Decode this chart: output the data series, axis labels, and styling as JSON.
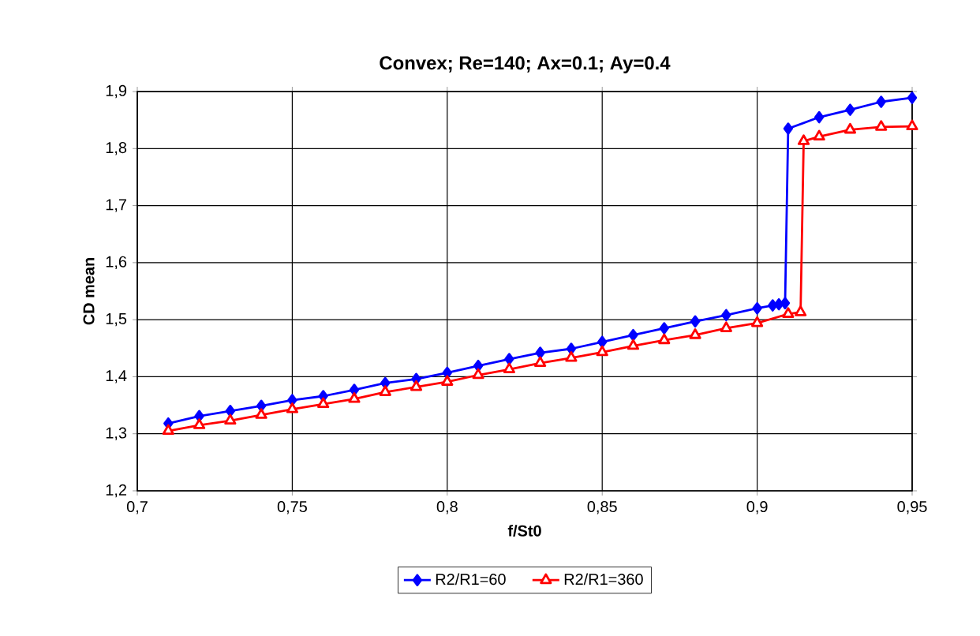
{
  "chart_data": {
    "type": "line",
    "title": "Convex; Re=140; Ax=0.1; Ay=0.4",
    "xlabel": "f/St0",
    "ylabel": "CD mean",
    "xlim": [
      0.7,
      0.95
    ],
    "ylim": [
      1.2,
      1.9
    ],
    "xticks": [
      {
        "value": 0.7,
        "label": "0,7"
      },
      {
        "value": 0.75,
        "label": "0,75"
      },
      {
        "value": 0.8,
        "label": "0,8"
      },
      {
        "value": 0.85,
        "label": "0,85"
      },
      {
        "value": 0.9,
        "label": "0,9"
      },
      {
        "value": 0.95,
        "label": "0,95"
      }
    ],
    "yticks": [
      {
        "value": 1.2,
        "label": "1,2"
      },
      {
        "value": 1.3,
        "label": "1,3"
      },
      {
        "value": 1.4,
        "label": "1,4"
      },
      {
        "value": 1.5,
        "label": "1,5"
      },
      {
        "value": 1.6,
        "label": "1,6"
      },
      {
        "value": 1.7,
        "label": "1,7"
      },
      {
        "value": 1.8,
        "label": "1,8"
      },
      {
        "value": 1.9,
        "label": "1,9"
      }
    ],
    "grid": true,
    "legend": "bottom",
    "line_style": "solid",
    "series": [
      {
        "name": "R2/R1=60",
        "color": "#0000ff",
        "marker": "diamond",
        "x": [
          0.71,
          0.72,
          0.73,
          0.74,
          0.75,
          0.76,
          0.77,
          0.78,
          0.79,
          0.8,
          0.81,
          0.82,
          0.83,
          0.84,
          0.85,
          0.86,
          0.87,
          0.88,
          0.89,
          0.9,
          0.905,
          0.907,
          0.909,
          0.91,
          0.92,
          0.93,
          0.94,
          0.95
        ],
        "values": [
          1.318,
          1.331,
          1.34,
          1.349,
          1.359,
          1.366,
          1.377,
          1.389,
          1.396,
          1.407,
          1.419,
          1.431,
          1.442,
          1.449,
          1.461,
          1.473,
          1.485,
          1.497,
          1.508,
          1.52,
          1.525,
          1.527,
          1.529,
          1.835,
          1.855,
          1.868,
          1.882,
          1.889
        ]
      },
      {
        "name": "R2/R1=360",
        "color": "#ff0000",
        "marker": "triangle",
        "x": [
          0.71,
          0.72,
          0.73,
          0.74,
          0.75,
          0.76,
          0.77,
          0.78,
          0.79,
          0.8,
          0.81,
          0.82,
          0.83,
          0.84,
          0.85,
          0.86,
          0.87,
          0.88,
          0.89,
          0.9,
          0.91,
          0.914,
          0.915,
          0.92,
          0.93,
          0.94,
          0.95
        ],
        "values": [
          1.305,
          1.315,
          1.323,
          1.333,
          1.343,
          1.352,
          1.361,
          1.373,
          1.382,
          1.391,
          1.403,
          1.413,
          1.424,
          1.433,
          1.443,
          1.454,
          1.464,
          1.473,
          1.485,
          1.494,
          1.51,
          1.513,
          1.813,
          1.821,
          1.833,
          1.838,
          1.839
        ]
      }
    ]
  }
}
